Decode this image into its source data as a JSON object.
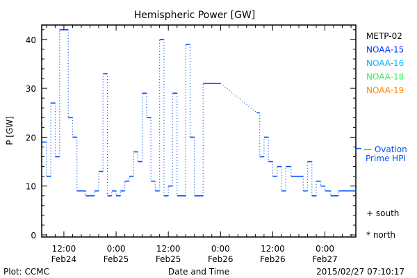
{
  "chart_data": {
    "type": "line",
    "title": "Hemispheric Power [GW]",
    "xlabel": "Date and Time",
    "ylabel": "P [GW]",
    "x_unit": "hours since 2015-02-24 00:00 UT",
    "xlim": [
      6.9,
      79.1
    ],
    "ylim": [
      0,
      43
    ],
    "yticks": [
      0,
      10,
      20,
      30,
      40
    ],
    "xticks": [
      {
        "hour": 12,
        "time": "12:00",
        "date": "Feb24"
      },
      {
        "hour": 24,
        "time": "0:00",
        "date": "Feb25"
      },
      {
        "hour": 36,
        "time": "12:00",
        "date": "Feb25"
      },
      {
        "hour": 48,
        "time": "0:00",
        "date": "Feb26"
      },
      {
        "hour": 60,
        "time": "12:00",
        "date": "Feb26"
      },
      {
        "hour": 72,
        "time": "0:00",
        "date": "Feb27"
      }
    ],
    "series": [
      {
        "name": "NOAA-15",
        "color": "#0050ff",
        "style": "step",
        "segments": [
          {
            "steps": [
              [
                7,
                19
              ],
              [
                8,
                12
              ],
              [
                9,
                27
              ],
              [
                10,
                16
              ],
              [
                11,
                42
              ],
              [
                13,
                24
              ],
              [
                14,
                20
              ],
              [
                15,
                9
              ],
              [
                17,
                8
              ],
              [
                19,
                9
              ],
              [
                20,
                13
              ],
              [
                21,
                33
              ],
              [
                22,
                8
              ],
              [
                23,
                9
              ],
              [
                24,
                8
              ],
              [
                25,
                9
              ],
              [
                26,
                11
              ],
              [
                27,
                12
              ],
              [
                28,
                17
              ],
              [
                29,
                15
              ],
              [
                30,
                29
              ],
              [
                31,
                24
              ],
              [
                32,
                11
              ],
              [
                33,
                9
              ],
              [
                34,
                40
              ],
              [
                35,
                8
              ],
              [
                36,
                10
              ],
              [
                37,
                29
              ],
              [
                38,
                8
              ],
              [
                40,
                39
              ],
              [
                41,
                20
              ],
              [
                42,
                8
              ],
              [
                44,
                31
              ]
            ],
            "end": 48
          },
          {
            "steps": [
              [
                56.3,
                25
              ],
              [
                57,
                16
              ],
              [
                58,
                20
              ],
              [
                59,
                15
              ],
              [
                60,
                12
              ],
              [
                61,
                14
              ],
              [
                62,
                9
              ],
              [
                63,
                14
              ],
              [
                64.2,
                12
              ],
              [
                67,
                9
              ],
              [
                68,
                15
              ],
              [
                69,
                8
              ],
              [
                70,
                11
              ],
              [
                71,
                10
              ],
              [
                72,
                9
              ],
              [
                73.3,
                8
              ],
              [
                75.1,
                9
              ]
            ],
            "end": 79
          },
          {
            "steps": [
              [
                79,
                12
              ]
            ],
            "end": 79.1
          }
        ]
      }
    ],
    "ovation_prime_hpi": 17.7,
    "legend": {
      "placement": "right",
      "entries": [
        {
          "label": "METP-02",
          "color": "#000000"
        },
        {
          "label": "NOAA-15",
          "color": "#0033ff"
        },
        {
          "label": "NOAA-16",
          "color": "#00b4ff"
        },
        {
          "label": "NOAA-18",
          "color": "#33ee66"
        },
        {
          "label": "NOAA-19",
          "color": "#ff8800"
        }
      ],
      "ovation_label_1": "— Ovation",
      "ovation_label_2": "Prime HPI",
      "ovation_color": "#0050ff",
      "south": "+ south",
      "north": "* north"
    },
    "footer_left": "Plot: CCMC",
    "footer_right": "2015/02/27 07:10:17"
  }
}
